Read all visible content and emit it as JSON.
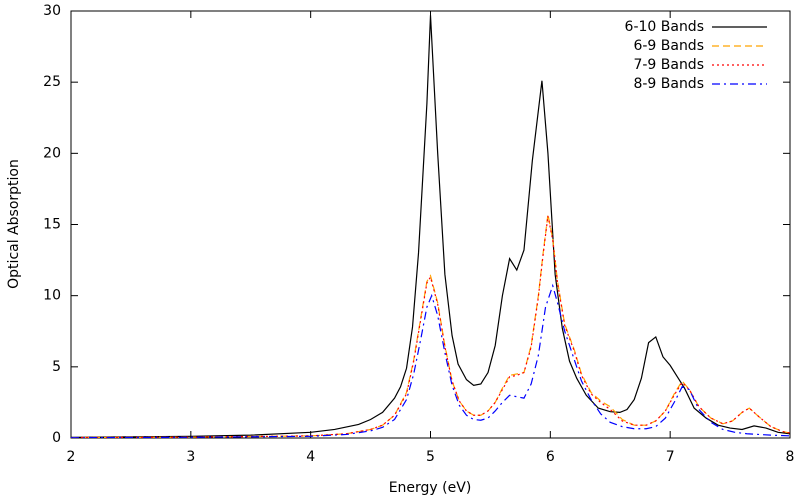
{
  "chart_data": {
    "type": "line",
    "xlabel": "Energy (eV)",
    "ylabel": "Optical Absorption",
    "xlim": [
      2,
      8
    ],
    "xticks": [
      2,
      3,
      4,
      5,
      6,
      7,
      8
    ],
    "ylim": [
      0,
      30
    ],
    "yticks": [
      0,
      5,
      10,
      15,
      20,
      25,
      30
    ],
    "legend": "top-right",
    "grid": false,
    "series": [
      {
        "name": "6-10 Bands",
        "color": "#000000",
        "dash": "solid",
        "x": [
          2,
          2.5,
          3,
          3.5,
          4,
          4.2,
          4.4,
          4.5,
          4.6,
          4.7,
          4.75,
          4.8,
          4.85,
          4.9,
          4.97,
          5.0,
          5.06,
          5.12,
          5.18,
          5.23,
          5.3,
          5.36,
          5.42,
          5.48,
          5.54,
          5.6,
          5.66,
          5.72,
          5.78,
          5.85,
          5.93,
          5.98,
          6.04,
          6.1,
          6.16,
          6.22,
          6.3,
          6.4,
          6.5,
          6.58,
          6.64,
          6.7,
          6.76,
          6.82,
          6.88,
          6.94,
          7.0,
          7.06,
          7.12,
          7.2,
          7.3,
          7.4,
          7.5,
          7.6,
          7.7,
          7.8,
          7.9,
          8.0
        ],
        "values": [
          0.05,
          0.08,
          0.12,
          0.2,
          0.4,
          0.6,
          0.95,
          1.3,
          1.8,
          2.8,
          3.6,
          4.9,
          7.8,
          13,
          23.5,
          29.7,
          20,
          11.5,
          7.2,
          5.2,
          4.1,
          3.7,
          3.8,
          4.6,
          6.5,
          10,
          12.6,
          11.8,
          13.2,
          19.5,
          25.1,
          20,
          11.5,
          7.7,
          5.4,
          4.2,
          3,
          2.1,
          1.85,
          1.8,
          2.0,
          2.7,
          4.2,
          6.7,
          7.1,
          5.7,
          5.1,
          4.3,
          3.5,
          2.1,
          1.4,
          0.9,
          0.7,
          0.6,
          0.85,
          0.7,
          0.4,
          0.3
        ]
      },
      {
        "name": "6-9 Bands",
        "color": "#ffa500",
        "dash": "dashed",
        "x": [
          2,
          3,
          4,
          4.3,
          4.5,
          4.6,
          4.7,
          4.8,
          4.86,
          4.92,
          4.97,
          5.0,
          5.06,
          5.12,
          5.18,
          5.24,
          5.3,
          5.36,
          5.42,
          5.48,
          5.54,
          5.6,
          5.66,
          5.72,
          5.78,
          5.84,
          5.9,
          5.94,
          5.98,
          6.02,
          6.06,
          6.12,
          6.2,
          6.26,
          6.34,
          6.42,
          6.5,
          6.6,
          6.7,
          6.8,
          6.88,
          6.96,
          7.04,
          7.1,
          7.16,
          7.24,
          7.34,
          7.44,
          7.52,
          7.6,
          7.66,
          7.74,
          7.84,
          7.94,
          8.0
        ],
        "values": [
          0.03,
          0.06,
          0.15,
          0.3,
          0.6,
          0.9,
          1.6,
          3.2,
          5.5,
          8.5,
          11,
          11.4,
          9.5,
          6.5,
          4,
          2.6,
          1.9,
          1.6,
          1.6,
          1.9,
          2.5,
          3.5,
          4.4,
          4.5,
          4.6,
          6.5,
          10,
          13,
          15.7,
          14,
          11,
          8,
          6.2,
          4.5,
          3.2,
          2.6,
          2.2,
          1.3,
          0.9,
          0.9,
          1.2,
          1.9,
          3.2,
          4.0,
          3.4,
          2.2,
          1.4,
          1.0,
          1.2,
          1.8,
          2.1,
          1.5,
          0.8,
          0.45,
          0.35
        ]
      },
      {
        "name": "7-9 Bands",
        "color": "#ff0000",
        "dash": "dotted",
        "x": [
          2,
          3,
          4,
          4.3,
          4.5,
          4.6,
          4.7,
          4.8,
          4.86,
          4.92,
          4.97,
          5.0,
          5.06,
          5.12,
          5.18,
          5.24,
          5.3,
          5.36,
          5.42,
          5.48,
          5.54,
          5.6,
          5.66,
          5.72,
          5.78,
          5.84,
          5.9,
          5.94,
          5.98,
          6.02,
          6.06,
          6.12,
          6.2,
          6.26,
          6.34,
          6.42,
          6.5,
          6.6,
          6.7,
          6.8,
          6.88,
          6.96,
          7.04,
          7.1,
          7.16,
          7.24,
          7.34,
          7.44,
          7.52,
          7.6,
          7.66,
          7.74,
          7.84,
          7.94,
          8.0
        ],
        "values": [
          0.03,
          0.06,
          0.15,
          0.3,
          0.6,
          0.9,
          1.6,
          3.1,
          5.4,
          8.4,
          10.9,
          11.3,
          9.4,
          6.4,
          4,
          2.6,
          1.9,
          1.6,
          1.6,
          1.9,
          2.5,
          3.4,
          4.3,
          4.4,
          4.6,
          6.4,
          9.9,
          12.9,
          15.6,
          13.9,
          10.9,
          7.9,
          6.1,
          4.4,
          3.1,
          2.5,
          2.0,
          1.2,
          0.9,
          0.9,
          1.2,
          1.9,
          3.1,
          3.9,
          3.4,
          2.2,
          1.4,
          1.0,
          1.2,
          1.8,
          2.1,
          1.5,
          0.8,
          0.45,
          0.35
        ]
      },
      {
        "name": "8-9 Bands",
        "color": "#0000ff",
        "dash": "dashdot",
        "x": [
          2,
          3,
          4,
          4.3,
          4.5,
          4.6,
          4.7,
          4.8,
          4.86,
          4.92,
          4.97,
          5.01,
          5.06,
          5.12,
          5.18,
          5.24,
          5.3,
          5.36,
          5.42,
          5.48,
          5.54,
          5.6,
          5.66,
          5.72,
          5.78,
          5.84,
          5.9,
          5.96,
          6.02,
          6.06,
          6.12,
          6.2,
          6.26,
          6.34,
          6.42,
          6.5,
          6.6,
          6.7,
          6.8,
          6.88,
          6.96,
          7.04,
          7.1,
          7.16,
          7.24,
          7.34,
          7.44,
          7.54,
          7.64,
          7.74,
          7.84,
          8.0
        ],
        "values": [
          0.02,
          0.05,
          0.12,
          0.25,
          0.5,
          0.75,
          1.3,
          2.7,
          4.5,
          7,
          9.2,
          10,
          8.6,
          6,
          3.7,
          2.3,
          1.6,
          1.3,
          1.25,
          1.4,
          1.9,
          2.5,
          3.0,
          2.9,
          2.8,
          3.8,
          5.8,
          9.2,
          10.7,
          9.5,
          7.5,
          5.5,
          4,
          2.7,
          1.7,
          1.1,
          0.8,
          0.65,
          0.65,
          0.8,
          1.4,
          2.6,
          3.6,
          3.4,
          2.0,
          1.1,
          0.6,
          0.4,
          0.3,
          0.25,
          0.2,
          0.15
        ]
      }
    ]
  }
}
